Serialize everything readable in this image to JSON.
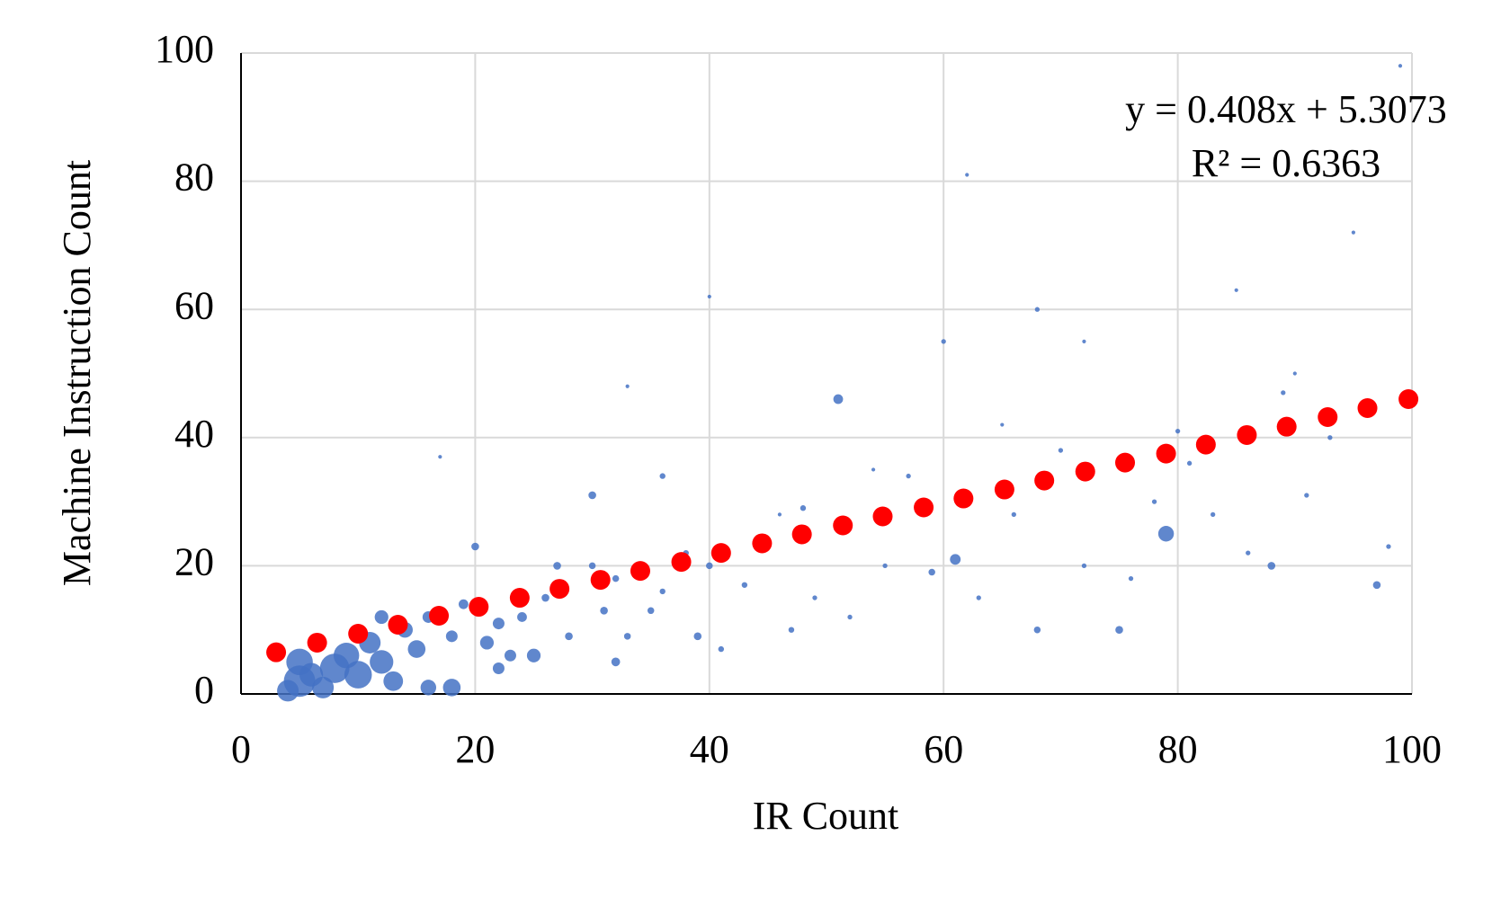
{
  "chart_data": {
    "type": "scatter",
    "xlabel": "IR Count",
    "ylabel": "Machine Instruction Count",
    "annotations": [
      "y = 0.408x + 5.3073",
      "R² = 0.6363"
    ],
    "xlim": [
      0,
      100
    ],
    "ylim": [
      0,
      100
    ],
    "xticks": [
      0,
      20,
      40,
      60,
      80,
      100
    ],
    "yticks": [
      0,
      20,
      40,
      60,
      80,
      100
    ],
    "grid": true,
    "series": [
      {
        "color": "#4472c4",
        "x": [
          5,
          5,
          6,
          7,
          8,
          9,
          10,
          11,
          12,
          13,
          14,
          15,
          16,
          16,
          18,
          19,
          20,
          21,
          22,
          23,
          24,
          25,
          26,
          27,
          28,
          30,
          30,
          31,
          32,
          32,
          33,
          35,
          36,
          36,
          38,
          39,
          40,
          41,
          43,
          45,
          47,
          48,
          49,
          51,
          52,
          55,
          57,
          59,
          60,
          61,
          63,
          66,
          68,
          68,
          70,
          72,
          75,
          76,
          78,
          79,
          80,
          81,
          83,
          86,
          88,
          89,
          91,
          93,
          97,
          98,
          17,
          33,
          40,
          46,
          54,
          65,
          72,
          85,
          90,
          95,
          62,
          99,
          4,
          12,
          18,
          22
        ],
        "values": [
          2,
          5,
          3,
          1,
          4,
          6,
          3,
          8,
          5,
          2,
          10,
          7,
          12,
          1,
          9,
          14,
          23,
          8,
          11,
          6,
          12,
          6,
          15,
          20,
          9,
          31,
          20,
          13,
          5,
          18,
          9,
          13,
          34,
          16,
          22,
          9,
          20,
          7,
          17,
          24,
          10,
          29,
          15,
          46,
          12,
          20,
          34,
          19,
          55,
          21,
          15,
          28,
          10,
          60,
          38,
          20,
          10,
          18,
          30,
          25,
          41,
          36,
          28,
          22,
          20,
          47,
          31,
          40,
          17,
          23,
          37,
          48,
          62,
          28,
          35,
          42,
          55,
          63,
          50,
          72,
          81,
          98,
          0.5,
          12,
          1,
          4
        ],
        "sizes": [
          30,
          25,
          22,
          20,
          28,
          24,
          26,
          20,
          22,
          18,
          14,
          16,
          10,
          14,
          10,
          8,
          6,
          12,
          10,
          10,
          8,
          12,
          6,
          6,
          6,
          6,
          5,
          6,
          7,
          5,
          5,
          5,
          4,
          4,
          4,
          6,
          5,
          4,
          4,
          4,
          4,
          4,
          3,
          8,
          3,
          3,
          3,
          5,
          3,
          9,
          3,
          3,
          5,
          3,
          3,
          3,
          6,
          3,
          3,
          14,
          3,
          3,
          3,
          3,
          6,
          3,
          3,
          3,
          6,
          3,
          2,
          2,
          2,
          2,
          2,
          2,
          2,
          2,
          2,
          2,
          2,
          2,
          20,
          12,
          16,
          10
        ]
      },
      {
        "color": "#ff0000",
        "x": [
          3,
          6.5,
          10,
          13.4,
          16.9,
          20.3,
          23.8,
          27.2,
          30.7,
          34.1,
          37.6,
          41,
          44.5,
          47.9,
          51.4,
          54.8,
          58.3,
          61.7,
          65.2,
          68.6,
          72.1,
          75.5,
          79,
          82.4,
          85.9,
          89.3,
          92.8,
          96.2,
          99.7
        ],
        "values": [
          6.5,
          8.0,
          9.4,
          10.8,
          12.2,
          13.6,
          15.0,
          16.4,
          17.8,
          19.2,
          20.6,
          22.0,
          23.5,
          24.9,
          26.3,
          27.7,
          29.1,
          30.5,
          31.9,
          33.3,
          34.7,
          36.1,
          37.5,
          38.9,
          40.4,
          41.7,
          43.2,
          44.6,
          46.0
        ]
      }
    ]
  }
}
